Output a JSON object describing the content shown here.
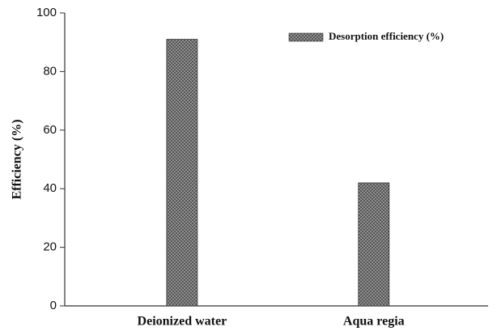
{
  "chart_data": {
    "type": "bar",
    "y_label": "Efficiency (%)",
    "categories": [
      "Deionized water",
      "Aqua regia"
    ],
    "series": [
      {
        "name": "Desorption efficiency (%)",
        "color": "#4a4a4a",
        "values": [
          91,
          42
        ]
      }
    ],
    "ylim": [
      0,
      100
    ],
    "yticks": [
      0,
      20,
      40,
      60,
      80,
      100
    ],
    "legend": "upper right"
  }
}
